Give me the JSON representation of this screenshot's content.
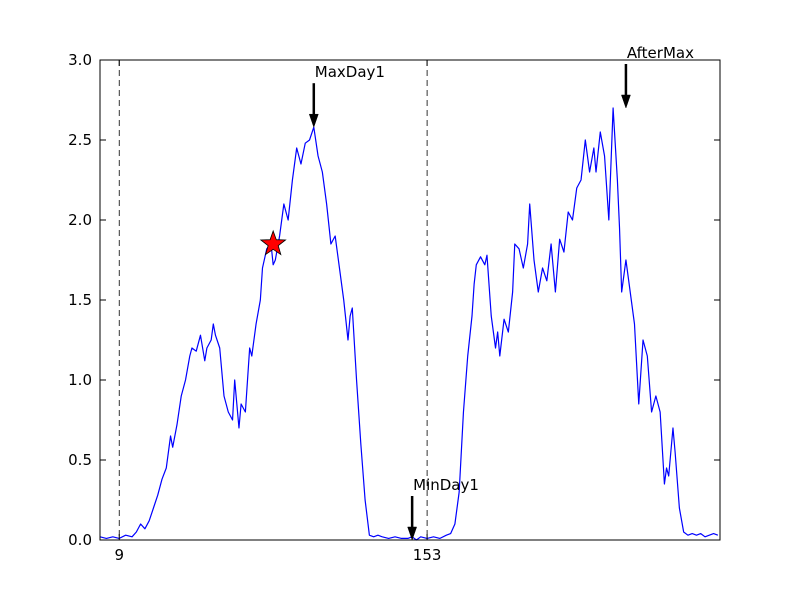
{
  "chart_data": {
    "type": "line",
    "title": "",
    "xlabel": "",
    "ylabel": "",
    "xlim": [
      0,
      290
    ],
    "ylim": [
      0.0,
      3.0
    ],
    "grid": false,
    "yticks": [
      {
        "value": 0.0,
        "label": "0.0"
      },
      {
        "value": 0.5,
        "label": "0.5"
      },
      {
        "value": 1.0,
        "label": "1.0"
      },
      {
        "value": 1.5,
        "label": "1.5"
      },
      {
        "value": 2.0,
        "label": "2.0"
      },
      {
        "value": 2.5,
        "label": "2.5"
      },
      {
        "value": 3.0,
        "label": "3.0"
      }
    ],
    "xticks": [
      {
        "value": 9,
        "label": "9"
      },
      {
        "value": 153,
        "label": "153"
      }
    ],
    "vlines": [
      9,
      153
    ],
    "series": [
      {
        "color": "#0000ff",
        "points": [
          [
            0,
            0.02
          ],
          [
            3,
            0.01
          ],
          [
            6,
            0.02
          ],
          [
            9,
            0.01
          ],
          [
            12,
            0.03
          ],
          [
            15,
            0.02
          ],
          [
            17,
            0.05
          ],
          [
            19,
            0.1
          ],
          [
            21,
            0.07
          ],
          [
            23,
            0.12
          ],
          [
            25,
            0.2
          ],
          [
            27,
            0.28
          ],
          [
            29,
            0.38
          ],
          [
            31,
            0.45
          ],
          [
            33,
            0.65
          ],
          [
            34,
            0.58
          ],
          [
            36,
            0.72
          ],
          [
            38,
            0.9
          ],
          [
            40,
            1.0
          ],
          [
            42,
            1.15
          ],
          [
            43,
            1.2
          ],
          [
            45,
            1.18
          ],
          [
            47,
            1.28
          ],
          [
            49,
            1.12
          ],
          [
            50,
            1.2
          ],
          [
            52,
            1.25
          ],
          [
            53,
            1.35
          ],
          [
            54,
            1.28
          ],
          [
            56,
            1.2
          ],
          [
            58,
            0.9
          ],
          [
            60,
            0.8
          ],
          [
            62,
            0.75
          ],
          [
            63,
            1.0
          ],
          [
            65,
            0.7
          ],
          [
            66,
            0.85
          ],
          [
            68,
            0.8
          ],
          [
            70,
            1.2
          ],
          [
            71,
            1.15
          ],
          [
            73,
            1.35
          ],
          [
            75,
            1.5
          ],
          [
            76,
            1.7
          ],
          [
            78,
            1.82
          ],
          [
            80,
            1.85
          ],
          [
            81,
            1.72
          ],
          [
            82,
            1.75
          ],
          [
            84,
            1.9
          ],
          [
            86,
            2.1
          ],
          [
            88,
            2.0
          ],
          [
            90,
            2.25
          ],
          [
            92,
            2.45
          ],
          [
            94,
            2.35
          ],
          [
            96,
            2.48
          ],
          [
            98,
            2.5
          ],
          [
            100,
            2.58
          ],
          [
            102,
            2.4
          ],
          [
            104,
            2.3
          ],
          [
            106,
            2.1
          ],
          [
            108,
            1.85
          ],
          [
            110,
            1.9
          ],
          [
            112,
            1.7
          ],
          [
            114,
            1.5
          ],
          [
            116,
            1.25
          ],
          [
            117,
            1.4
          ],
          [
            118,
            1.45
          ],
          [
            120,
            1.0
          ],
          [
            122,
            0.6
          ],
          [
            124,
            0.25
          ],
          [
            126,
            0.03
          ],
          [
            128,
            0.02
          ],
          [
            130,
            0.03
          ],
          [
            132,
            0.02
          ],
          [
            135,
            0.01
          ],
          [
            138,
            0.02
          ],
          [
            141,
            0.01
          ],
          [
            144,
            0.01
          ],
          [
            146,
            0.02
          ],
          [
            148,
            0.0
          ],
          [
            150,
            0.02
          ],
          [
            153,
            0.01
          ],
          [
            156,
            0.02
          ],
          [
            159,
            0.01
          ],
          [
            162,
            0.03
          ],
          [
            164,
            0.04
          ],
          [
            166,
            0.1
          ],
          [
            168,
            0.3
          ],
          [
            170,
            0.8
          ],
          [
            172,
            1.15
          ],
          [
            174,
            1.4
          ],
          [
            175,
            1.6
          ],
          [
            176,
            1.72
          ],
          [
            178,
            1.77
          ],
          [
            180,
            1.72
          ],
          [
            181,
            1.78
          ],
          [
            183,
            1.4
          ],
          [
            185,
            1.2
          ],
          [
            186,
            1.3
          ],
          [
            187,
            1.15
          ],
          [
            189,
            1.38
          ],
          [
            191,
            1.3
          ],
          [
            193,
            1.55
          ],
          [
            194,
            1.85
          ],
          [
            196,
            1.82
          ],
          [
            198,
            1.7
          ],
          [
            200,
            1.85
          ],
          [
            201,
            2.1
          ],
          [
            203,
            1.75
          ],
          [
            205,
            1.55
          ],
          [
            207,
            1.7
          ],
          [
            209,
            1.62
          ],
          [
            211,
            1.85
          ],
          [
            213,
            1.55
          ],
          [
            215,
            1.88
          ],
          [
            217,
            1.8
          ],
          [
            219,
            2.05
          ],
          [
            221,
            2.0
          ],
          [
            223,
            2.2
          ],
          [
            225,
            2.25
          ],
          [
            227,
            2.5
          ],
          [
            229,
            2.3
          ],
          [
            231,
            2.45
          ],
          [
            232,
            2.3
          ],
          [
            234,
            2.55
          ],
          [
            236,
            2.4
          ],
          [
            238,
            2.0
          ],
          [
            240,
            2.7
          ],
          [
            242,
            2.25
          ],
          [
            243,
            1.95
          ],
          [
            244,
            1.55
          ],
          [
            246,
            1.75
          ],
          [
            248,
            1.55
          ],
          [
            250,
            1.35
          ],
          [
            252,
            0.85
          ],
          [
            254,
            1.25
          ],
          [
            256,
            1.15
          ],
          [
            258,
            0.8
          ],
          [
            260,
            0.9
          ],
          [
            262,
            0.8
          ],
          [
            264,
            0.35
          ],
          [
            265,
            0.45
          ],
          [
            266,
            0.4
          ],
          [
            268,
            0.7
          ],
          [
            269,
            0.55
          ],
          [
            271,
            0.2
          ],
          [
            273,
            0.05
          ],
          [
            275,
            0.03
          ],
          [
            277,
            0.04
          ],
          [
            279,
            0.03
          ],
          [
            281,
            0.04
          ],
          [
            283,
            0.02
          ],
          [
            285,
            0.03
          ],
          [
            287,
            0.04
          ],
          [
            289,
            0.03
          ]
        ]
      }
    ],
    "annotations": [
      {
        "label": "MaxDay1",
        "x": 100,
        "y": 2.58
      },
      {
        "label": "MinDay1",
        "x": 146,
        "y": 0.0
      },
      {
        "label": "AfterMax",
        "x": 246,
        "y": 2.7
      }
    ],
    "marker": {
      "shape": "star",
      "x": 81,
      "y": 1.85,
      "fill": "#ff0000",
      "stroke": "#000000"
    }
  }
}
